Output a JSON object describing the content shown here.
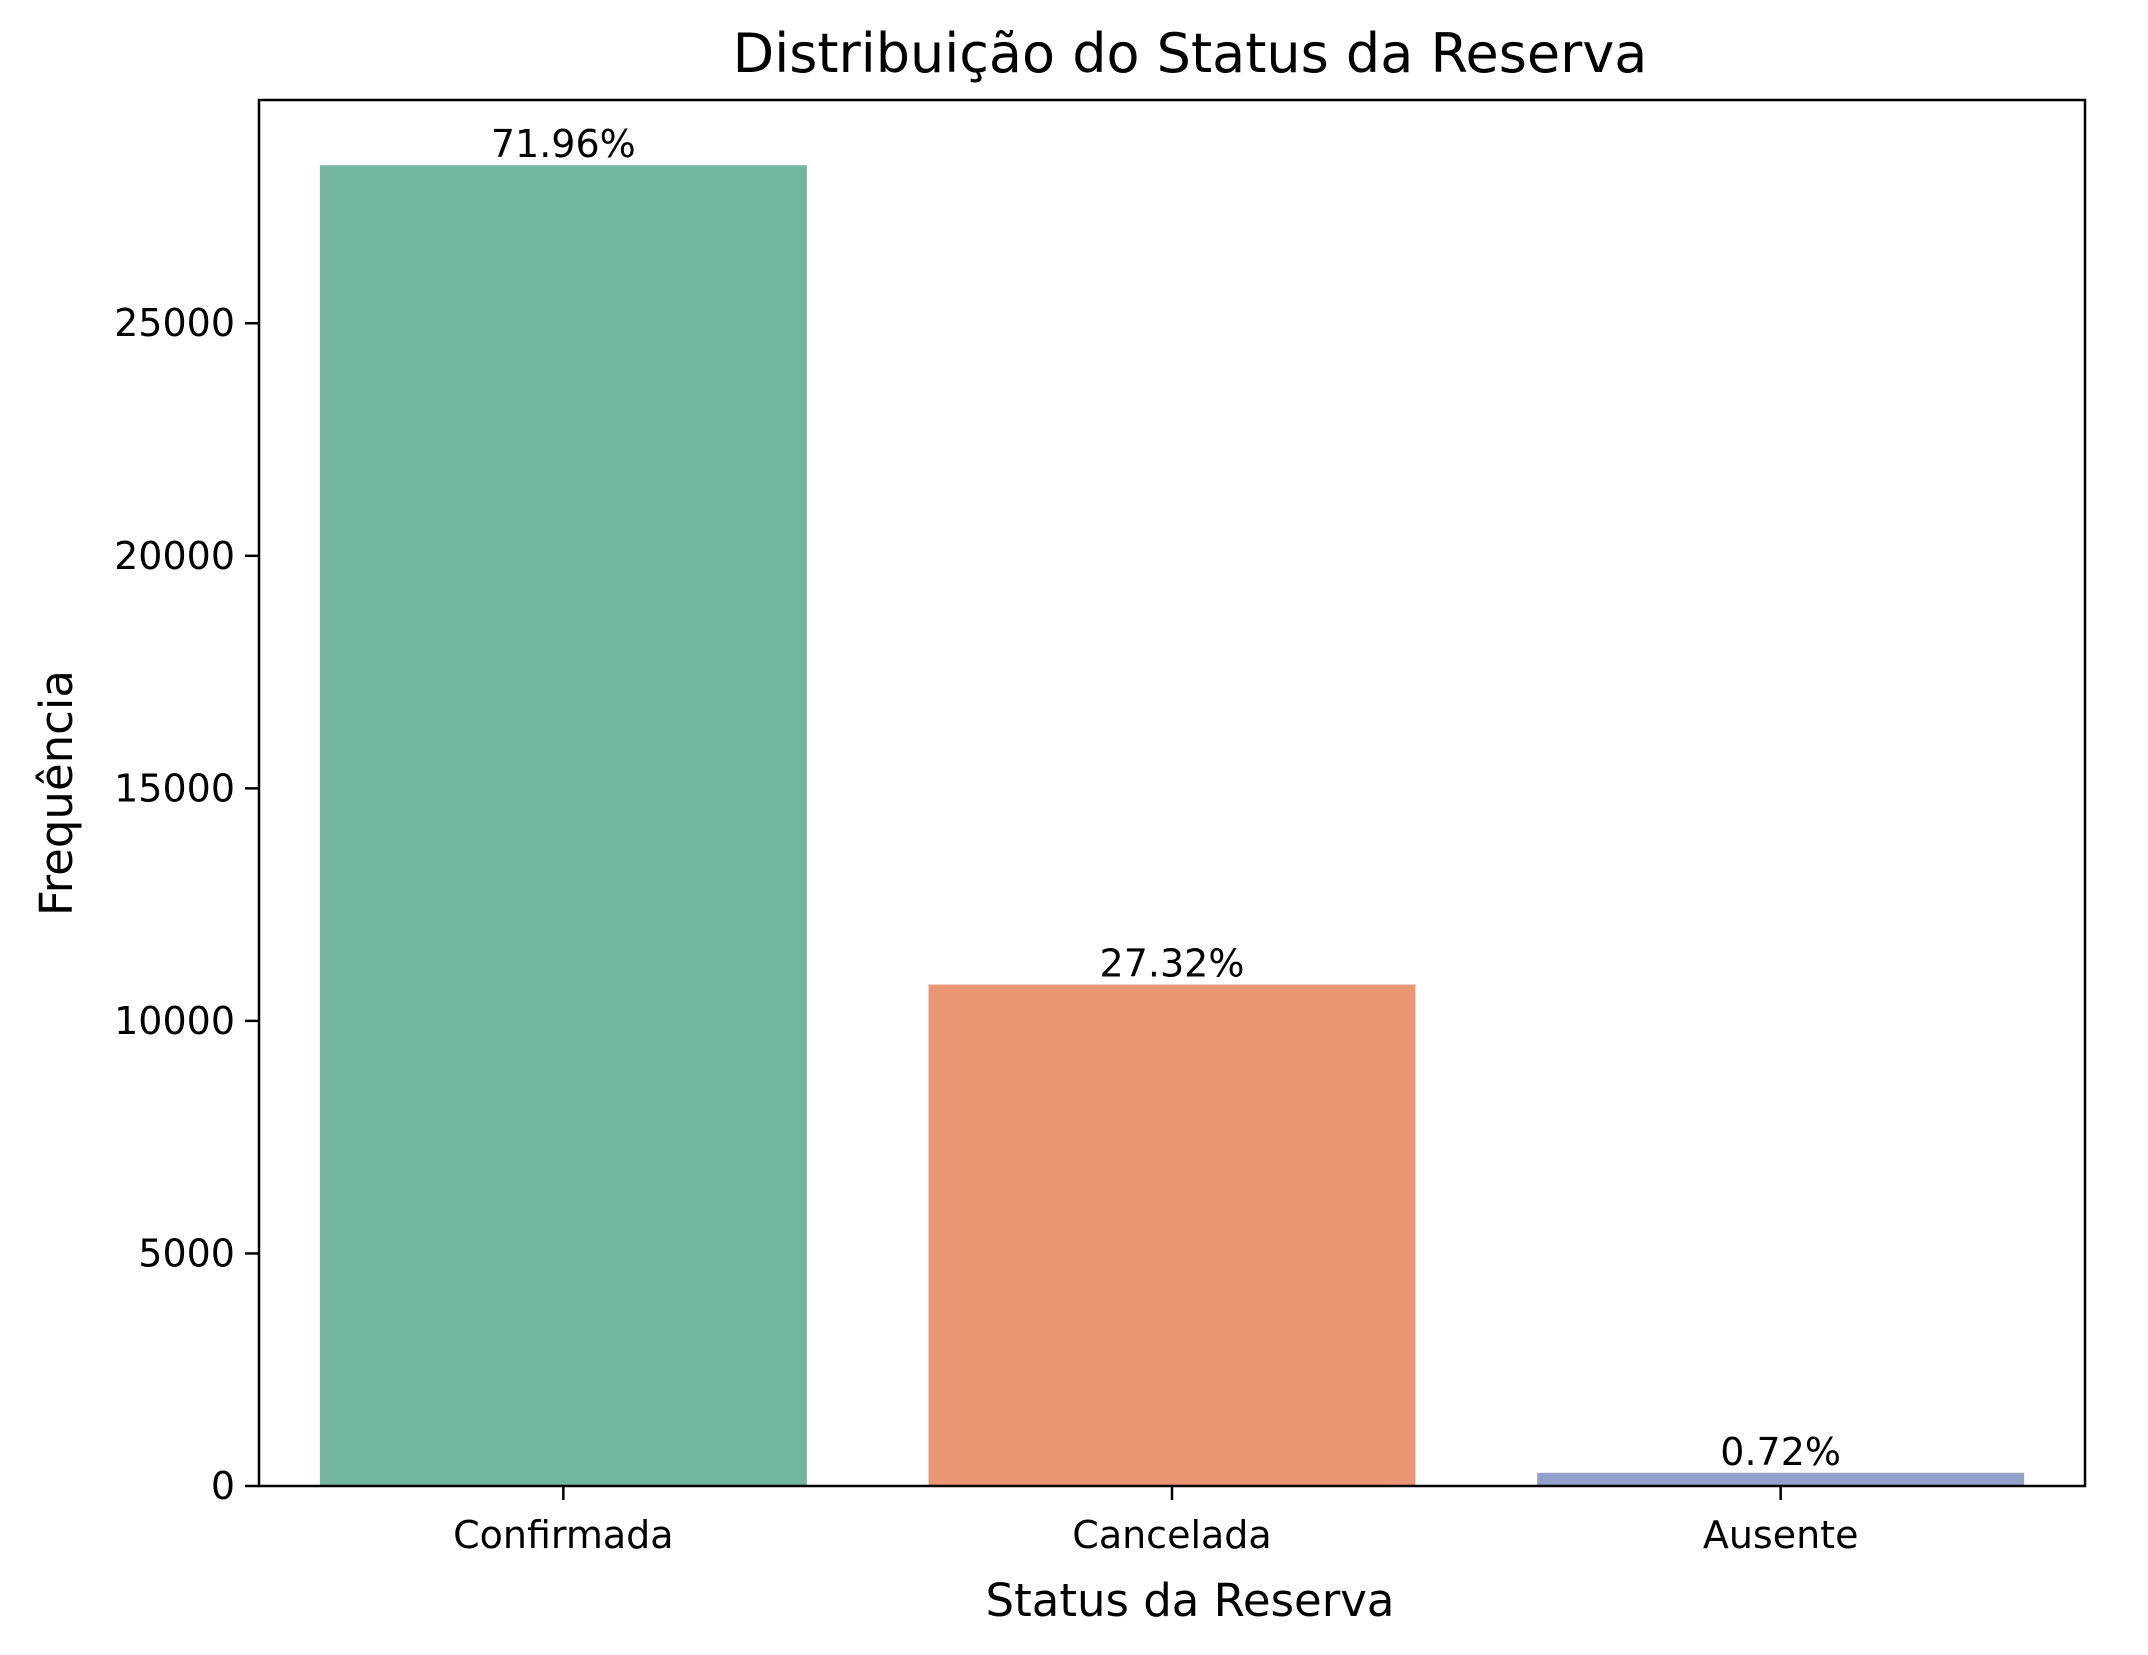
{
  "chart_data": {
    "type": "bar",
    "title": "Distribuição do Status da Reserva",
    "xlabel": "Status da Reserva",
    "ylabel": "Frequência",
    "categories": [
      "Confirmada",
      "Cancelada",
      "Ausente"
    ],
    "values": [
      28398,
      10781,
      284
    ],
    "data_labels": [
      "71.96%",
      "27.32%",
      "0.72%"
    ],
    "colors": [
      "#73b5a1",
      "#e99675",
      "#91a1c9"
    ],
    "ylim": [
      0,
      29800
    ],
    "yticks": [
      0,
      5000,
      10000,
      15000,
      20000,
      25000
    ],
    "ytick_labels": [
      "0",
      "5000",
      "10000",
      "15000",
      "20000",
      "25000"
    ],
    "grid": false,
    "legend": "none"
  }
}
